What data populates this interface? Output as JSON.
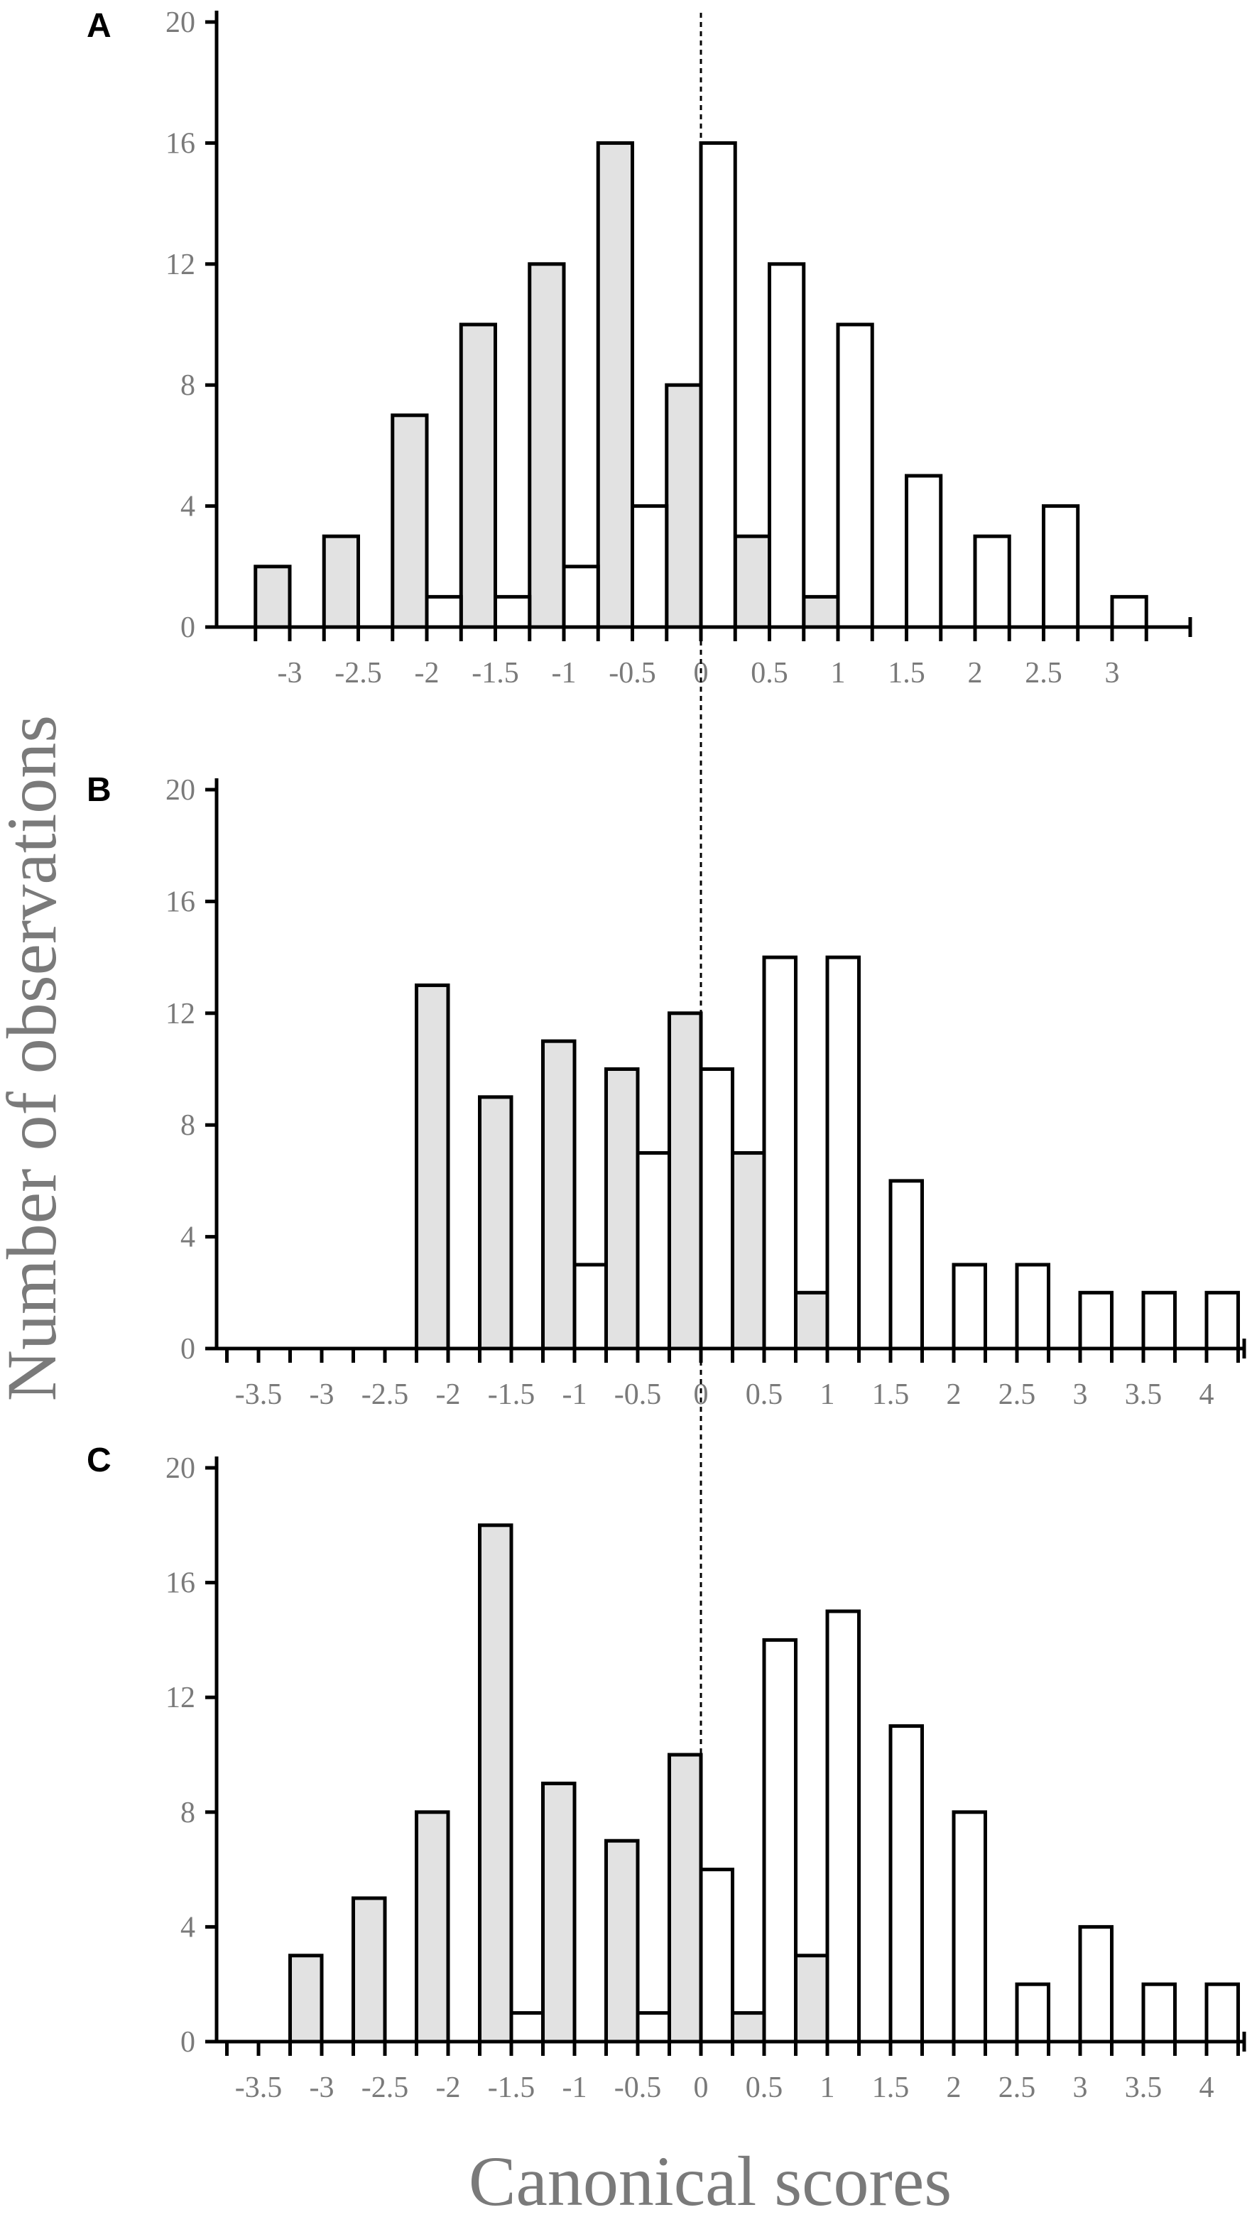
{
  "y_axis_title": "Number of observations",
  "x_axis_title": "Canonical scores",
  "colors": {
    "group_a": "#e2e2e2",
    "group_b": "#ffffff",
    "axis": "#000000",
    "text": "#7a7a7a"
  },
  "chart_data": [
    {
      "type": "bar",
      "panel": "A",
      "ylim": [
        0,
        20
      ],
      "yticks": [
        "0",
        "4",
        "8",
        "12",
        "16",
        "20"
      ],
      "xlim": [
        -3.5,
        3.5
      ],
      "xticks": [
        "-3",
        "-2.5",
        "-2",
        "-1.5",
        "-1",
        "-0.5",
        "0",
        "0.5",
        "1",
        "1.5",
        "2",
        "2.5",
        "3"
      ],
      "series": [
        {
          "x": [
            -3,
            -2.5,
            -2,
            -1.5,
            -1,
            -0.5,
            0,
            0.5,
            1
          ],
          "values": [
            2,
            3,
            7,
            10,
            12,
            16,
            8,
            3,
            1
          ]
        },
        {
          "x": [
            -2,
            -1.5,
            -1,
            -0.5,
            0,
            0.5,
            1,
            1.5,
            2,
            2.5,
            3
          ],
          "values": [
            1,
            1,
            2,
            4,
            16,
            12,
            10,
            5,
            3,
            4,
            1
          ]
        }
      ]
    },
    {
      "type": "bar",
      "panel": "B",
      "ylim": [
        0,
        20
      ],
      "yticks": [
        "0",
        "4",
        "8",
        "12",
        "16",
        "20"
      ],
      "xlim": [
        -3.5,
        4.2
      ],
      "xticks": [
        "-3.5",
        "-3",
        "-2.5",
        "-2",
        "-1.5",
        "-1",
        "-0.5",
        "0",
        "0.5",
        "1",
        "1.5",
        "2",
        "2.5",
        "3",
        "3.5",
        "4"
      ],
      "series": [
        {
          "x": [
            -2,
            -1.5,
            -1,
            -0.5,
            0,
            0.5,
            1
          ],
          "values": [
            13,
            9,
            11,
            10,
            12,
            7,
            2
          ]
        },
        {
          "x": [
            -1,
            -0.5,
            0,
            0.5,
            1,
            1.5,
            2,
            2.5,
            3,
            3.5,
            4
          ],
          "values": [
            3,
            7,
            10,
            14,
            14,
            6,
            3,
            3,
            2,
            2,
            2
          ]
        }
      ]
    },
    {
      "type": "bar",
      "panel": "C",
      "ylim": [
        0,
        20
      ],
      "yticks": [
        "0",
        "4",
        "8",
        "12",
        "16",
        "20"
      ],
      "xlim": [
        -3.5,
        4.2
      ],
      "xticks": [
        "-3.5",
        "-3",
        "-2.5",
        "-2",
        "-1.5",
        "-1",
        "-0.5",
        "0",
        "0.5",
        "1",
        "1.5",
        "2",
        "2.5",
        "3",
        "3.5",
        "4"
      ],
      "series": [
        {
          "x": [
            -3,
            -2.5,
            -2,
            -1.5,
            -1,
            -0.5,
            0,
            0.5,
            1
          ],
          "values": [
            3,
            5,
            8,
            18,
            9,
            7,
            10,
            1,
            3
          ]
        },
        {
          "x": [
            -1.5,
            -0.5,
            0,
            0.5,
            1,
            1.5,
            2,
            2.5,
            3,
            3.5,
            4
          ],
          "values": [
            1,
            1,
            6,
            14,
            15,
            11,
            8,
            2,
            4,
            2,
            2
          ]
        }
      ]
    }
  ]
}
